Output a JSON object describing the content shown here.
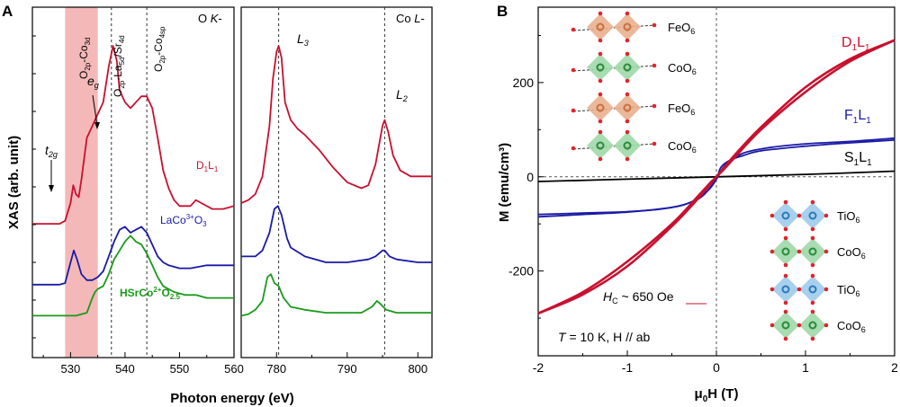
{
  "panel_a": {
    "panel_label": "A",
    "ylabel": "XAS (arb. unit)",
    "xlabel": "Photon energy (eV)",
    "edge_labels": {
      "ok_prefix": "O ",
      "ok_italic": "K",
      "ok_suffix": "-",
      "col_prefix": "Co ",
      "col_italic": "L",
      "col_suffix": "-"
    },
    "band_label": {
      "main": "O",
      "s1": "2p",
      "mid": "-Co",
      "s2": "3d"
    },
    "line_labels": [
      {
        "main": "O",
        "s1": "2p",
        "mid": "-La",
        "s2": "5d",
        "tail": "/Sr",
        "s3": "4d"
      },
      {
        "main": "O",
        "s1": "2p",
        "mid": "-Co",
        "s2": "4sp",
        "tail": "",
        "s3": ""
      }
    ],
    "peak_labels": {
      "eg": {
        "main": "e",
        "sub": "g"
      },
      "t2g": {
        "main": "t",
        "sub": "2g"
      },
      "L3": {
        "main": "L",
        "sub": "3"
      },
      "L2": {
        "main": "L",
        "sub": "2"
      }
    },
    "series_labels": [
      {
        "text": "D",
        "sub1": "1",
        "text2": "L",
        "sub2": "1",
        "sup": ""
      },
      {
        "text": "LaCo",
        "sup": "3+",
        "text2": "O",
        "sub2": "3",
        "sub1": ""
      },
      {
        "text": "HSrCo",
        "sup": "2+",
        "text2": "O",
        "sub2": "2.5",
        "sub1": ""
      }
    ]
  },
  "panel_b": {
    "panel_label": "B",
    "ylabel": "M (emu/cm³)",
    "xlabel_main": "μ",
    "xlabel_sub": "0",
    "xlabel_tail": "H (T)",
    "hc_text": {
      "italic": "H",
      "sub": "C",
      "rest": " ~ 650 ",
      "unit": "Oe"
    },
    "t_text": {
      "italic": "T",
      "rest": " = 10 K,  H // ab"
    },
    "series_labels": [
      {
        "main": "D",
        "s1": "1",
        "mid": "L",
        "s2": "1"
      },
      {
        "main": "F",
        "s1": "1",
        "mid": "L",
        "s2": "1"
      },
      {
        "main": "S",
        "s1": "1",
        "mid": "L",
        "s2": "1"
      }
    ],
    "inset_top": [
      {
        "main": "FeO",
        "sub": "6"
      },
      {
        "main": "CoO",
        "sub": "6"
      },
      {
        "main": "FeO",
        "sub": "6"
      },
      {
        "main": "CoO",
        "sub": "6"
      }
    ],
    "inset_bottom": [
      {
        "main": "TiO",
        "sub": "6"
      },
      {
        "main": "CoO",
        "sub": "6"
      },
      {
        "main": "TiO",
        "sub": "6"
      },
      {
        "main": "CoO",
        "sub": "6"
      }
    ]
  },
  "colors": {
    "D1L1": "#c8102e",
    "LaCoO3": "#1a1aa6",
    "HSrCoO": "#1a9a1a",
    "F1L1": "#1a1aa6",
    "S1L1": "#000000",
    "band": "#f4b8b8",
    "feo6": "#e9b08f",
    "coo6": "#9fd8a8",
    "tio6": "#9fcbea",
    "oxygen": "#e0242a"
  },
  "chart_data": [
    {
      "type": "line",
      "panel": "A",
      "xlabel": "Photon energy (eV)",
      "ylabel": "XAS (arb. unit)",
      "x_ranges": [
        [
          523,
          560
        ],
        [
          775,
          802
        ]
      ],
      "x_ticks": [
        530,
        540,
        550,
        560,
        780,
        790,
        800
      ],
      "y_ticks_shown": false,
      "band": [
        529,
        535
      ],
      "dashed_lines": [
        537.5,
        544,
        780.3,
        795.3
      ],
      "series": [
        {
          "name": "D1L1",
          "o_k": [
            [
              523,
              0.33
            ],
            [
              528,
              0.33
            ],
            [
              529,
              0.34
            ],
            [
              530,
              0.4
            ],
            [
              530.5,
              0.46
            ],
            [
              531,
              0.43
            ],
            [
              531.5,
              0.42
            ],
            [
              532,
              0.48
            ],
            [
              533,
              0.62
            ],
            [
              534,
              0.66
            ],
            [
              535,
              0.7
            ],
            [
              536,
              0.74
            ],
            [
              537,
              0.86
            ],
            [
              537.8,
              0.93
            ],
            [
              538.5,
              0.88
            ],
            [
              539,
              0.78
            ],
            [
              540,
              0.74
            ],
            [
              541,
              0.72
            ],
            [
              542,
              0.74
            ],
            [
              543,
              0.76
            ],
            [
              544,
              0.76
            ],
            [
              545,
              0.72
            ],
            [
              546,
              0.62
            ],
            [
              547,
              0.51
            ],
            [
              548,
              0.45
            ],
            [
              549,
              0.41
            ],
            [
              550,
              0.39
            ],
            [
              552,
              0.39
            ],
            [
              553,
              0.41
            ],
            [
              554,
              0.4
            ],
            [
              556,
              0.38
            ],
            [
              558,
              0.38
            ],
            [
              560,
              0.39
            ]
          ],
          "co_l": [
            [
              775,
              0.4
            ],
            [
              776,
              0.41
            ],
            [
              777,
              0.43
            ],
            [
              778,
              0.49
            ],
            [
              779,
              0.66
            ],
            [
              779.5,
              0.82
            ],
            [
              780,
              0.91
            ],
            [
              780.3,
              0.93
            ],
            [
              780.7,
              0.89
            ],
            [
              781.2,
              0.74
            ],
            [
              782,
              0.68
            ],
            [
              783,
              0.65
            ],
            [
              784,
              0.63
            ],
            [
              786,
              0.58
            ],
            [
              788,
              0.52
            ],
            [
              790,
              0.47
            ],
            [
              792,
              0.45
            ],
            [
              793,
              0.46
            ],
            [
              794,
              0.53
            ],
            [
              795,
              0.66
            ],
            [
              795.3,
              0.68
            ],
            [
              795.8,
              0.64
            ],
            [
              796.5,
              0.56
            ],
            [
              797.5,
              0.51
            ],
            [
              799,
              0.49
            ],
            [
              802,
              0.49
            ]
          ]
        },
        {
          "name": "LaCo3+O3",
          "o_k": [
            [
              523,
              0.125
            ],
            [
              528,
              0.125
            ],
            [
              529,
              0.13
            ],
            [
              530,
              0.2
            ],
            [
              530.6,
              0.24
            ],
            [
              531.2,
              0.21
            ],
            [
              532,
              0.16
            ],
            [
              533,
              0.14
            ],
            [
              534,
              0.14
            ],
            [
              535,
              0.15
            ],
            [
              536,
              0.17
            ],
            [
              537,
              0.22
            ],
            [
              538,
              0.27
            ],
            [
              539,
              0.31
            ],
            [
              540,
              0.32
            ],
            [
              541,
              0.3
            ],
            [
              542,
              0.31
            ],
            [
              543,
              0.32
            ],
            [
              544,
              0.3
            ],
            [
              545,
              0.26
            ],
            [
              546,
              0.22
            ],
            [
              547,
              0.2
            ],
            [
              548,
              0.19
            ],
            [
              550,
              0.18
            ],
            [
              552,
              0.18
            ],
            [
              555,
              0.19
            ],
            [
              558,
              0.19
            ],
            [
              560,
              0.19
            ]
          ],
          "co_l": [
            [
              775,
              0.22
            ],
            [
              777,
              0.22
            ],
            [
              778,
              0.24
            ],
            [
              779,
              0.3
            ],
            [
              779.7,
              0.38
            ],
            [
              780.2,
              0.39
            ],
            [
              780.7,
              0.36
            ],
            [
              781.5,
              0.28
            ],
            [
              782,
              0.25
            ],
            [
              784,
              0.22
            ],
            [
              787,
              0.2
            ],
            [
              790,
              0.2
            ],
            [
              793,
              0.21
            ],
            [
              794,
              0.22
            ],
            [
              795,
              0.24
            ],
            [
              795.3,
              0.24
            ],
            [
              796,
              0.22
            ],
            [
              797,
              0.21
            ],
            [
              800,
              0.2
            ],
            [
              802,
              0.2
            ]
          ]
        },
        {
          "name": "HSrCo2+O2.5",
          "o_k": [
            [
              523,
              0.02
            ],
            [
              531,
              0.02
            ],
            [
              533,
              0.03
            ],
            [
              534,
              0.08
            ],
            [
              534.5,
              0.1
            ],
            [
              535,
              0.11
            ],
            [
              536,
              0.12
            ],
            [
              537,
              0.16
            ],
            [
              538,
              0.21
            ],
            [
              539,
              0.24
            ],
            [
              540,
              0.27
            ],
            [
              541,
              0.29
            ],
            [
              542,
              0.27
            ],
            [
              543,
              0.26
            ],
            [
              544,
              0.23
            ],
            [
              545,
              0.19
            ],
            [
              546,
              0.15
            ],
            [
              547,
              0.12
            ],
            [
              549,
              0.1
            ],
            [
              551,
              0.09
            ],
            [
              553,
              0.09
            ],
            [
              555,
              0.08
            ],
            [
              557,
              0.08
            ],
            [
              560,
              0.08
            ]
          ],
          "co_l": [
            [
              775,
              0.02
            ],
            [
              776,
              0.025
            ],
            [
              777,
              0.04
            ],
            [
              778,
              0.07
            ],
            [
              778.7,
              0.15
            ],
            [
              779.2,
              0.16
            ],
            [
              779.7,
              0.13
            ],
            [
              780.3,
              0.12
            ],
            [
              781,
              0.08
            ],
            [
              782,
              0.05
            ],
            [
              784,
              0.04
            ],
            [
              787,
              0.03
            ],
            [
              790,
              0.03
            ],
            [
              792,
              0.03
            ],
            [
              793.5,
              0.05
            ],
            [
              794.2,
              0.07
            ],
            [
              794.7,
              0.06
            ],
            [
              795.5,
              0.04
            ],
            [
              797,
              0.03
            ],
            [
              800,
              0.03
            ],
            [
              802,
              0.03
            ]
          ]
        }
      ]
    },
    {
      "type": "line",
      "panel": "B",
      "xlabel": "μ0H (T)",
      "ylabel": "M (emu/cm³)",
      "xlim": [
        -2,
        2
      ],
      "ylim": [
        -380,
        360
      ],
      "x_ticks": [
        -2,
        -1,
        0,
        1,
        2
      ],
      "y_ticks": [
        -200,
        0,
        200
      ],
      "dashed_zero_lines": true,
      "series": [
        {
          "name": "D1L1",
          "upper": [
            [
              -2,
              -290
            ],
            [
              -1.5,
              -250
            ],
            [
              -1,
              -190
            ],
            [
              -0.5,
              -105
            ],
            [
              -0.2,
              -45
            ],
            [
              0,
              0
            ],
            [
              0.065,
              12
            ],
            [
              0.2,
              40
            ],
            [
              0.5,
              100
            ],
            [
              1,
              180
            ],
            [
              1.5,
              245
            ],
            [
              2,
              290
            ]
          ],
          "lower": [
            [
              -2,
              -290
            ],
            [
              -1.5,
              -245
            ],
            [
              -1,
              -180
            ],
            [
              -0.5,
              -100
            ],
            [
              -0.2,
              -40
            ],
            [
              -0.065,
              -12
            ],
            [
              0,
              0
            ],
            [
              0.2,
              45
            ],
            [
              0.5,
              105
            ],
            [
              1,
              190
            ],
            [
              1.5,
              250
            ],
            [
              2,
              290
            ]
          ]
        },
        {
          "name": "F1L1",
          "upper": [
            [
              -2,
              -80
            ],
            [
              -1.5,
              -77
            ],
            [
              -1,
              -74
            ],
            [
              -0.6,
              -68
            ],
            [
              -0.3,
              -55
            ],
            [
              -0.1,
              -30
            ],
            [
              0,
              -5
            ],
            [
              0.05,
              20
            ],
            [
              0.15,
              35
            ],
            [
              0.3,
              45
            ],
            [
              0.5,
              55
            ],
            [
              1,
              65
            ],
            [
              1.5,
              72
            ],
            [
              2,
              78
            ]
          ],
          "lower": [
            [
              -2,
              -85
            ],
            [
              -1.5,
              -80
            ],
            [
              -1,
              -75
            ],
            [
              -0.5,
              -65
            ],
            [
              -0.3,
              -55
            ],
            [
              -0.15,
              -40
            ],
            [
              0,
              -5
            ],
            [
              0.1,
              25
            ],
            [
              0.3,
              50
            ],
            [
              0.6,
              62
            ],
            [
              1,
              70
            ],
            [
              1.5,
              75
            ],
            [
              2,
              82
            ]
          ]
        },
        {
          "name": "S1L1",
          "points": [
            [
              -2,
              -10
            ],
            [
              -1,
              -5
            ],
            [
              0,
              0
            ],
            [
              1,
              5
            ],
            [
              2,
              12
            ]
          ]
        }
      ]
    }
  ]
}
